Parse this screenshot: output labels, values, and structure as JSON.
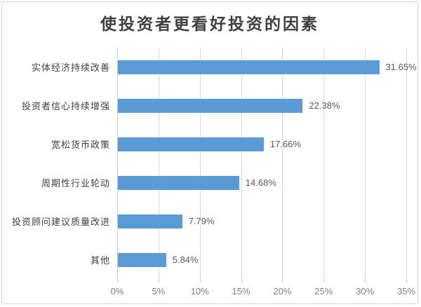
{
  "chart_data": {
    "type": "bar",
    "orientation": "horizontal",
    "title": "使投资者更看好投资的因素",
    "categories": [
      "实体经济持续改善",
      "投资者信心持续增强",
      "宽松货币政策",
      "周期性行业轮动",
      "投资顾问建议质量改进",
      "其他"
    ],
    "values": [
      31.65,
      22.38,
      17.66,
      14.68,
      7.79,
      5.84
    ],
    "value_labels": [
      "31.65%",
      "22.38%",
      "17.66%",
      "14.68%",
      "7.79%",
      "5.84%"
    ],
    "xlabel": "",
    "ylabel": "",
    "xlim": [
      0,
      35
    ],
    "xticks": [
      0,
      5,
      10,
      15,
      20,
      25,
      30,
      35
    ],
    "xtick_labels": [
      "0%",
      "5%",
      "10%",
      "15%",
      "20%",
      "25%",
      "30%",
      "35%"
    ],
    "grid": "vertical",
    "legend": "none",
    "colors": {
      "bar": "#5b9bd5",
      "title": "#404040",
      "category_label": "#404040",
      "value_label": "#595959",
      "axis_label": "#808080",
      "gridline": "#d9d9d9",
      "axis_line": "#c6c6c6",
      "border": "#d4d4d4"
    }
  }
}
